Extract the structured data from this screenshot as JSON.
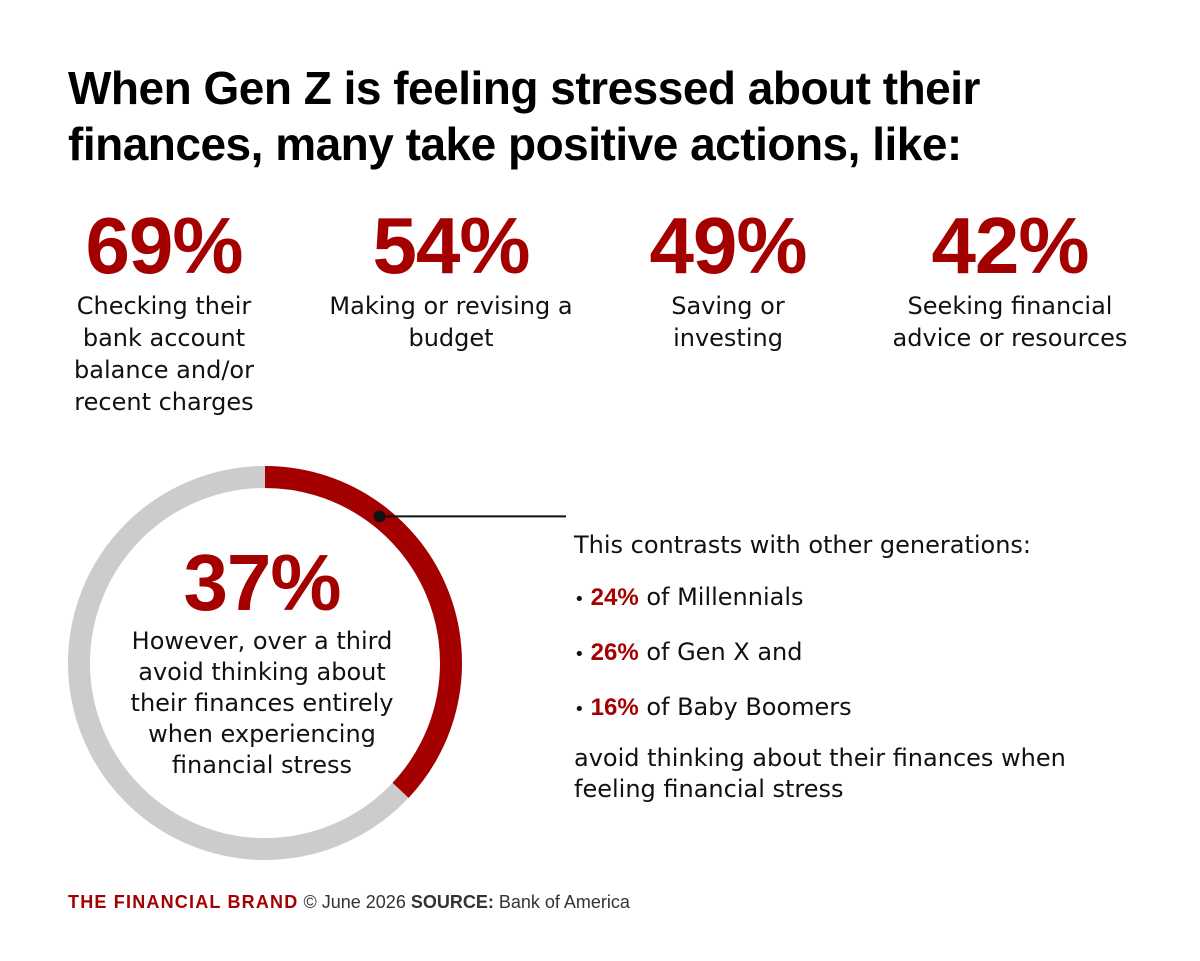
{
  "title": "When Gen Z is feeling stressed about their finances, many take positive actions, like:",
  "stats": [
    {
      "value": "69%",
      "label": "Checking their bank account balance and/or recent charges"
    },
    {
      "value": "54%",
      "label": "Making or revising a budget"
    },
    {
      "value": "49%",
      "label": "Saving or investing"
    },
    {
      "value": "42%",
      "label": "Seeking financial advice or resources"
    }
  ],
  "donut": {
    "value_label": "37%",
    "text": "However, over a third avoid thinking about their finances entirely when experiencing financial stress"
  },
  "contrast": {
    "lead": "This contrasts with other generations:",
    "bullet_symbol": "•",
    "items": [
      {
        "value": "24%",
        "text": "of Millennials"
      },
      {
        "value": "26%",
        "text": "of Gen X and"
      },
      {
        "value": "16%",
        "text": "of Baby Boomers"
      }
    ],
    "trail": "avoid thinking about their finances when feeling financial stress"
  },
  "footer": {
    "brand": "THE FINANCIAL BRAND",
    "copyright": "© June 2026",
    "source_label": "SOURCE:",
    "source": "Bank of America"
  },
  "colors": {
    "accent": "#a50000",
    "ring_track": "#cccccc",
    "text": "#111111"
  },
  "chart_data": {
    "type": "pie",
    "title": "",
    "categories": [
      "Avoid thinking about finances",
      "Other"
    ],
    "values": [
      37,
      63
    ],
    "value_labels": [
      "37%"
    ]
  }
}
